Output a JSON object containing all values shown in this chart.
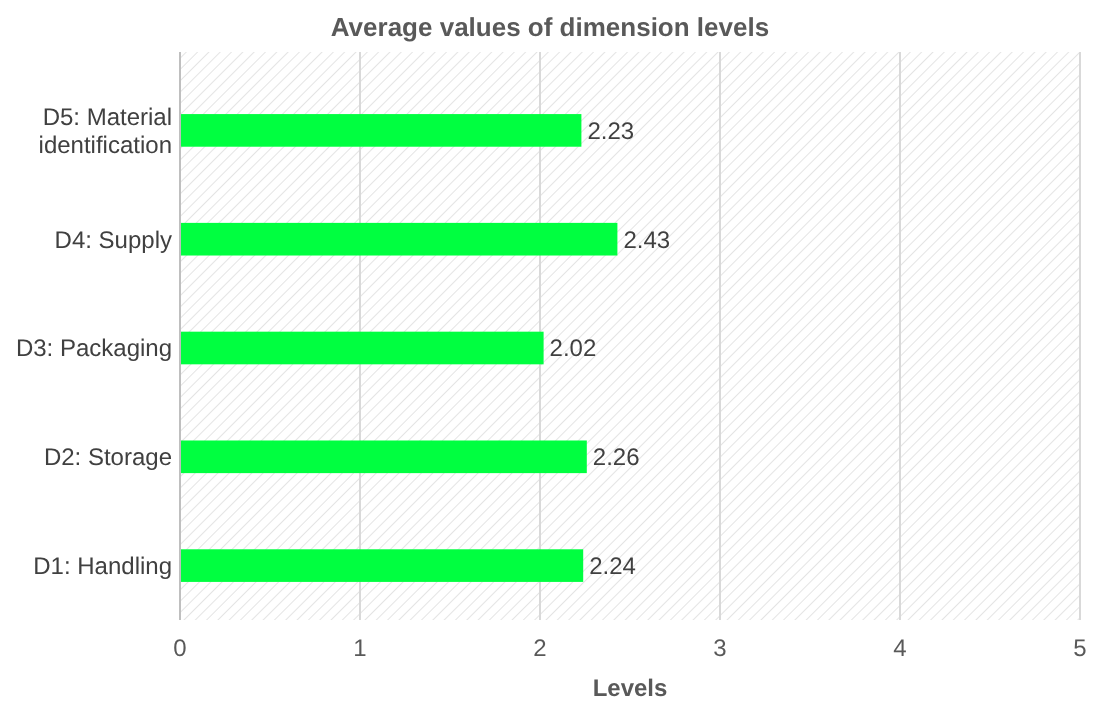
{
  "chart_data": {
    "type": "bar",
    "orientation": "horizontal",
    "title": "Average values of dimension levels",
    "xlabel": "Levels",
    "categories": [
      "D5: Material identification",
      "D4: Supply",
      "D3: Packaging",
      "D2: Storage",
      "D1: Handling"
    ],
    "values": [
      2.23,
      2.43,
      2.02,
      2.26,
      2.24
    ],
    "color": "#00ff40",
    "xlim": [
      0,
      5
    ],
    "xticks": [
      0,
      1,
      2,
      3,
      4,
      5
    ],
    "grid": "x",
    "data_labels": true
  }
}
